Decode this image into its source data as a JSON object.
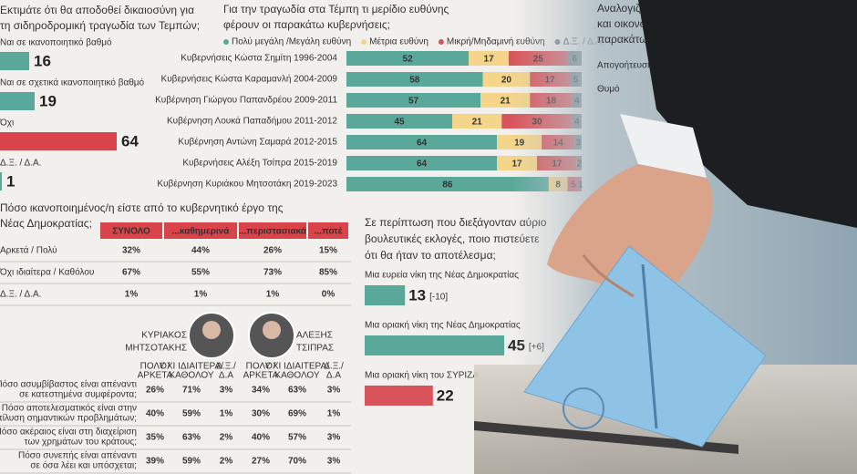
{
  "justice": {
    "title": [
      "Εκτιμάτε ότι θα αποδοθεί δικαιοσύνη για",
      "τη σιδηροδρομική τραγωδία των Τεμπών;"
    ],
    "items": [
      {
        "label": "Ναι σε ικανοποιητικό βαθμό",
        "value": 16,
        "color": "#5aa89a"
      },
      {
        "label": "Ναι σε σχετικά ικανοποιητικό βαθμό",
        "value": 19,
        "color": "#5aa89a"
      },
      {
        "label": "Όχι",
        "value": 64,
        "color": "#d9434a"
      },
      {
        "label": "Δ.Ξ. / Δ.Α.",
        "value": 1,
        "color": "#5aa89a"
      }
    ]
  },
  "responsibility": {
    "title": [
      "Για την τραγωδία στα Τέμπη τι μερίδιο ευθύνης",
      "φέρουν οι παρακάτω κυβερνήσεις;"
    ],
    "legend": [
      {
        "name": "Πολύ μεγάλη /Μεγάλη ευθύνη",
        "color": "#5aa89a"
      },
      {
        "name": "Μέτρια ευθύνη",
        "color": "#f5d58a"
      },
      {
        "name": "Μικρή/Μηδαμινή ευθύνη",
        "color": "#d9545a"
      },
      {
        "name": "Δ.Ξ. / Δ.Α.",
        "color": "#6f7f88"
      }
    ],
    "rows": [
      {
        "label": "Κυβερνήσεις Κώστα Σημίτη 1996-2004",
        "values": [
          52,
          17,
          25,
          6
        ]
      },
      {
        "label": "Κυβερνήσεις Κώστα Καραμανλή 2004-2009",
        "values": [
          58,
          20,
          17,
          5
        ]
      },
      {
        "label": "Κυβέρνηση Γιώργου Παπανδρέου 2009-2011",
        "values": [
          57,
          21,
          18,
          4
        ]
      },
      {
        "label": "Κυβέρνηση Λουκά Παπαδήμου 2011-2012",
        "values": [
          45,
          21,
          30,
          4
        ]
      },
      {
        "label": "Κυβέρνηση Αντώνη Σαμαρά 2012-2015",
        "values": [
          64,
          19,
          14,
          3
        ]
      },
      {
        "label": "Κυβερνήσεις Αλέξη Τσίπρα 2015-2019",
        "values": [
          64,
          17,
          17,
          2
        ]
      },
      {
        "label": "Κυβέρνηση Κυριάκου Μητσοτάκη 2019-2023",
        "values": [
          86,
          8,
          5,
          1
        ]
      }
    ]
  },
  "emotions": {
    "title": [
      "Αναλογιζόμενος/η την πολιτική",
      "και οικονομική κατάσταση, νιώθετε τα",
      "παρακάτω συναισθήματα;"
    ],
    "items": [
      "Απογοήτευση",
      "Θυμό"
    ]
  },
  "satisfaction": {
    "title": [
      "Πόσο ικανοποιημένος/η είστε από το κυβερνητικό έργο της",
      "Νέας Δημοκρατίας;"
    ],
    "columns": [
      "ΣΥΝΟΛΟ",
      "...καθημερινά",
      "...περιστασιακά",
      "...ποτέ"
    ],
    "rows": [
      {
        "label": "Αρκετά / Πολύ",
        "cells": [
          "32%",
          "44%",
          "26%",
          "15%"
        ]
      },
      {
        "label": "Όχι ιδιαίτερα / Καθόλου",
        "cells": [
          "67%",
          "55%",
          "73%",
          "85%"
        ]
      },
      {
        "label": "Δ.Ξ. / Δ.Α.",
        "cells": [
          "1%",
          "1%",
          "1%",
          "0%"
        ]
      }
    ]
  },
  "leaders": {
    "names": [
      [
        "ΚΥΡΙΑΚΟΣ",
        "ΜΗΤΣΟΤΑΚΗΣ"
      ],
      [
        "ΑΛΕΞΗΣ",
        "ΤΣΙΠΡΑΣ"
      ]
    ],
    "columns": [
      [
        "ΠΟΛΥ /",
        "ΑΡΚΕΤΑ"
      ],
      [
        "ΟΧΙ ΙΔΙΑΙΤΕΡΑ/",
        "ΚΑΘΟΛΟΥ"
      ],
      [
        "Δ.Ξ./",
        "Δ.Α"
      ]
    ],
    "rows": [
      {
        "question": [
          "Πόσο ασυμβίβαστος είναι απέναντι",
          "σε κατεστημένα συμφέροντα;"
        ],
        "cells": [
          "26%",
          "71%",
          "3%",
          "34%",
          "63%",
          "3%"
        ]
      },
      {
        "question": [
          "Πόσο αποτελεσματικός είναι στην",
          "επίλυση σημαντικών προβλημάτων;"
        ],
        "cells": [
          "40%",
          "59%",
          "1%",
          "30%",
          "69%",
          "1%"
        ]
      },
      {
        "question": [
          "Πόσο ακέραιος είναι στη διαχείριση",
          "των χρημάτων του κράτους;"
        ],
        "cells": [
          "35%",
          "63%",
          "2%",
          "40%",
          "57%",
          "3%"
        ]
      },
      {
        "question": [
          "Πόσο συνεπής είναι απέναντι",
          "σε όσα λέει και υπόσχεται;"
        ],
        "cells": [
          "39%",
          "59%",
          "2%",
          "27%",
          "70%",
          "3%"
        ]
      }
    ]
  },
  "elections": {
    "title": [
      "Σε περίπτωση που διεξάγονταν αύριο",
      "βουλευτικές εκλογές, ποιο πιστεύετε",
      "ότι θα ήταν το αποτέλεσμα;"
    ],
    "items": [
      {
        "label": "Μια ευρεία νίκη της Νέας Δημοκρατίας",
        "value": 13,
        "change": "[-10]",
        "color": "#5aa89a"
      },
      {
        "label": "Μια οριακή νίκη της Νέας Δημοκρατίας",
        "value": 45,
        "change": "[+6]",
        "color": "#5aa89a"
      },
      {
        "label": "Μια οριακή νίκη του ΣΥΡΙΖΑ",
        "value": 22,
        "change": "",
        "color": "#d9545a"
      }
    ]
  }
}
